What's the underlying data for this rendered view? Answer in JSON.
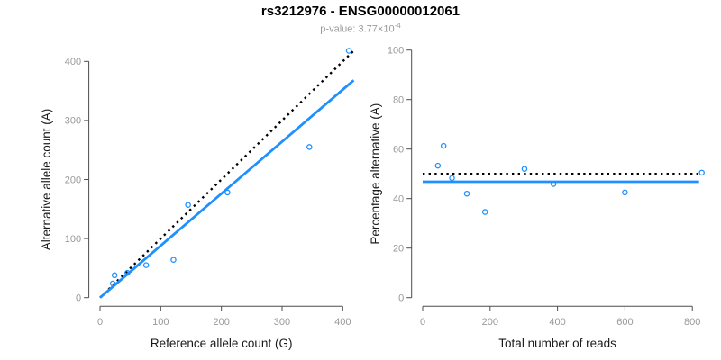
{
  "header": {
    "title": "rs3212976 - ENSG00000012061",
    "pvalue_label": "p-value: 3.77×10",
    "pvalue_exponent": "-4"
  },
  "colors": {
    "accent_blue": "#1E90FF",
    "dotted_black": "#000000",
    "axis_line": "#4d4d4d",
    "tick_label": "#999999",
    "axis_title": "#1a1a1a",
    "title": "#000000",
    "subtitle": "#9a9a9a",
    "background": "#ffffff"
  },
  "chart_data": [
    {
      "type": "scatter",
      "name": "allele-counts-scatter",
      "xlabel": "Reference allele count (G)",
      "ylabel": "Alternative allele count (A)",
      "xlim": [
        0,
        418
      ],
      "ylim": [
        0,
        418
      ],
      "xticks": [
        0,
        100,
        200,
        300,
        400
      ],
      "yticks": [
        0,
        100,
        200,
        300,
        400
      ],
      "grid": false,
      "legend": "none",
      "point_shape": "open-circle",
      "points": [
        [
          21,
          24
        ],
        [
          24,
          38
        ],
        [
          45,
          42
        ],
        [
          76,
          55
        ],
        [
          121,
          64
        ],
        [
          145,
          157
        ],
        [
          210,
          178
        ],
        [
          345,
          255
        ],
        [
          410,
          418
        ]
      ],
      "lines": [
        {
          "name": "identity-50pct-line",
          "style": "dotted",
          "color": "#000000",
          "from": [
            0,
            0
          ],
          "to": [
            418,
            418
          ]
        },
        {
          "name": "fit-line",
          "style": "solid",
          "color": "#1E90FF",
          "from": [
            0,
            0
          ],
          "to": [
            418,
            368
          ]
        }
      ]
    },
    {
      "type": "scatter",
      "name": "percentage-vs-reads-scatter",
      "xlabel": "Total number of reads",
      "ylabel": "Percentage alternative (A)",
      "xlim": [
        0,
        830
      ],
      "ylim": [
        0,
        100
      ],
      "xticks": [
        0,
        200,
        400,
        600,
        800
      ],
      "yticks": [
        0,
        20,
        40,
        60,
        80,
        100
      ],
      "grid": false,
      "legend": "none",
      "point_shape": "open-circle",
      "points": [
        [
          45,
          53.3
        ],
        [
          62,
          61.3
        ],
        [
          87,
          48.3
        ],
        [
          131,
          42.0
        ],
        [
          185,
          34.6
        ],
        [
          302,
          52.0
        ],
        [
          388,
          45.9
        ],
        [
          600,
          42.5
        ],
        [
          828,
          50.5
        ]
      ],
      "lines": [
        {
          "name": "fifty-percent-line",
          "style": "dotted",
          "color": "#000000",
          "from": [
            0,
            50
          ],
          "to": [
            820,
            50
          ]
        },
        {
          "name": "mean-percentage-line",
          "style": "solid",
          "color": "#1E90FF",
          "from": [
            0,
            46.8
          ],
          "to": [
            820,
            46.8
          ]
        }
      ]
    }
  ]
}
